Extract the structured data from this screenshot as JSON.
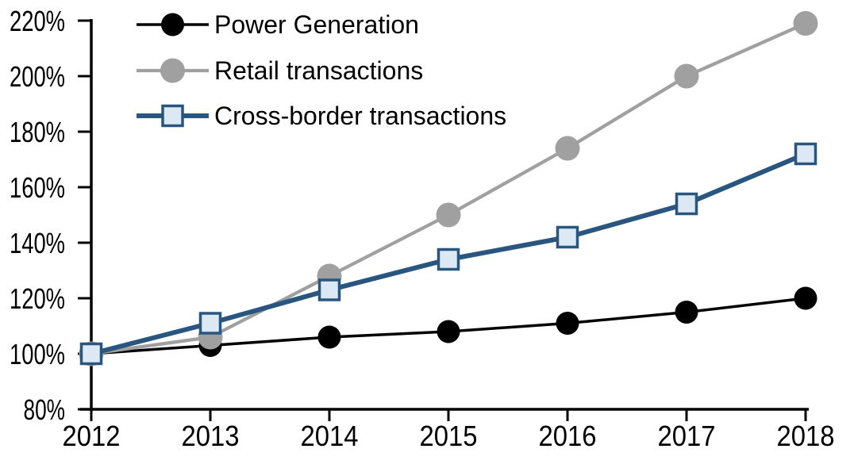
{
  "chart_data": {
    "type": "line",
    "title": "",
    "xlabel": "",
    "ylabel": "",
    "background_color": "#FFFFFF",
    "axis_color": "#000000",
    "grid": false,
    "legend_position": "top-left",
    "x_axis": {
      "tick_labels": [
        "2012",
        "2013",
        "2014",
        "2015",
        "2016",
        "2017",
        "2018"
      ]
    },
    "y_axis": {
      "min": 80,
      "max": 220,
      "step": 20,
      "tick_values": [
        80,
        100,
        120,
        140,
        160,
        180,
        200,
        220
      ],
      "tick_labels": [
        "80%",
        "100%",
        "120%",
        "140%",
        "160%",
        "180%",
        "200%",
        "220%"
      ]
    },
    "categories": [
      2012,
      2013,
      2014,
      2015,
      2016,
      2017,
      2018
    ],
    "series": [
      {
        "name": "Power Generation",
        "color": "#000000",
        "marker": "circle",
        "marker_fill": "#000000",
        "marker_size": 14.5,
        "line_width": 3.5,
        "values": [
          100,
          103,
          106,
          108,
          111,
          115,
          120
        ]
      },
      {
        "name": "Retail transactions",
        "color": "#A0A0A0",
        "marker": "circle",
        "marker_fill": "#A0A0A0",
        "marker_size": 15.5,
        "line_width": 4.3,
        "values": [
          100,
          106,
          128,
          150,
          174,
          200,
          219
        ]
      },
      {
        "name": "Cross-border transactions",
        "color": "#28567E",
        "marker": "square",
        "marker_fill": "#DCE9F5",
        "marker_size": 12.5,
        "marker_border_width": 3.5,
        "line_width": 6,
        "values": [
          100,
          111,
          123,
          134,
          142,
          154,
          172
        ]
      }
    ],
    "unit": "percent, indexed to 2012 = 100%"
  }
}
